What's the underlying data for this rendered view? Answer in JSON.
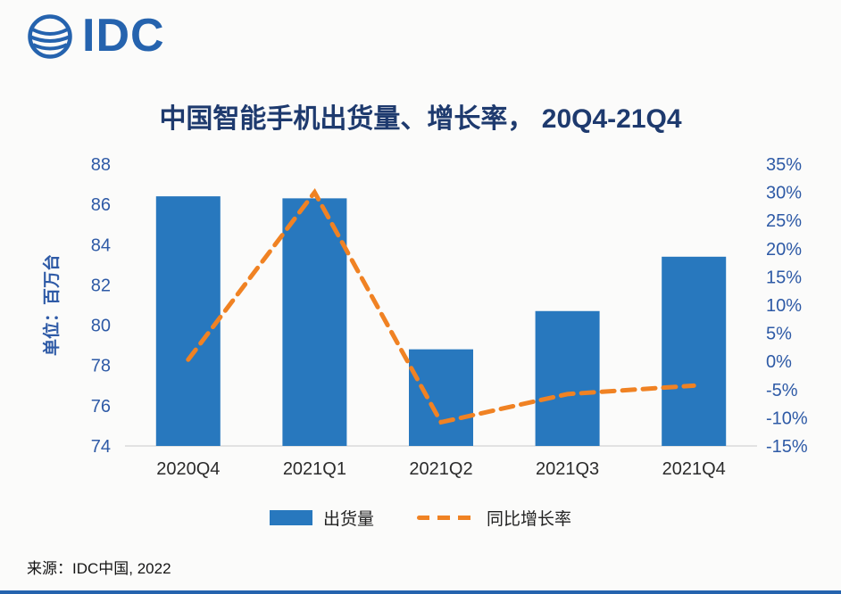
{
  "brand": {
    "logo_text": "IDC",
    "color": "#2563AE"
  },
  "chart_data": {
    "type": "bar",
    "subtype": "combo-bar-line",
    "title": "中国智能手机出货量、增长率， 20Q4-21Q4",
    "categories": [
      "2020Q4",
      "2021Q1",
      "2021Q2",
      "2021Q3",
      "2021Q4"
    ],
    "series": [
      {
        "name": "出货量",
        "type": "bar",
        "axis": "left",
        "unit": "百万台",
        "values": [
          86.4,
          86.3,
          78.8,
          80.7,
          83.4
        ]
      },
      {
        "name": "同比增长率",
        "type": "line",
        "axis": "right",
        "unit": "%",
        "values": [
          0.3,
          30.0,
          -10.8,
          -5.8,
          -4.3
        ]
      }
    ],
    "left_axis": {
      "label": "单位：百万台",
      "min": 74,
      "max": 88,
      "step": 2
    },
    "right_axis": {
      "min": -15,
      "max": 35,
      "step": 5,
      "suffix": "%"
    },
    "legend_position": "bottom",
    "grid": false,
    "colors": {
      "bar": "#2878BE",
      "line": "#F08223",
      "title": "#1E3A6E",
      "axis_text": "#2E5AA6",
      "category_text": "#2B2B2B"
    }
  },
  "footer": {
    "source": "来源：IDC中国, 2022"
  }
}
